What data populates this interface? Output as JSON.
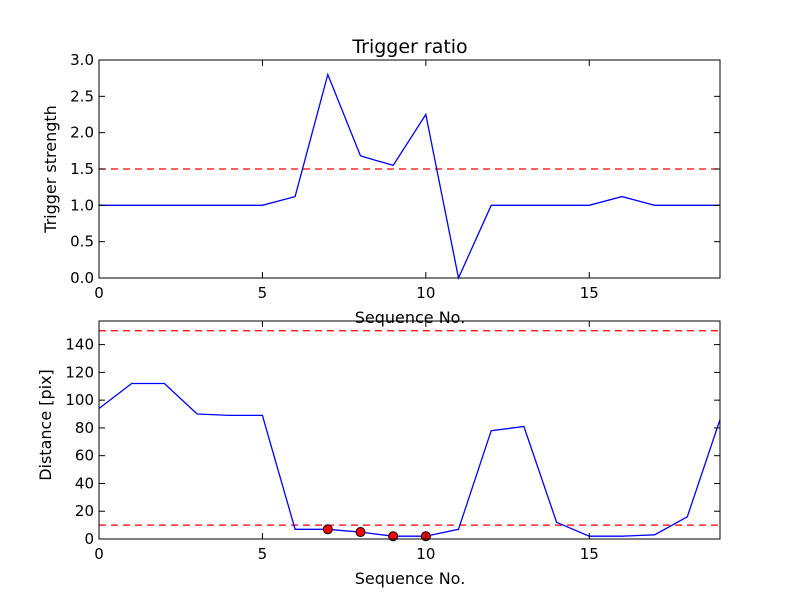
{
  "chart_data": [
    {
      "type": "line",
      "title": "Trigger ratio",
      "xlabel": "Sequence No.",
      "ylabel": "Trigger strength",
      "xlim": [
        0,
        19
      ],
      "ylim": [
        0,
        3.0
      ],
      "xticks": [
        0,
        5,
        10,
        15
      ],
      "xtick_labels": [
        "0",
        "5",
        "10",
        "15"
      ],
      "yticks": [
        0,
        0.5,
        1.0,
        1.5,
        2.0,
        2.5,
        3.0
      ],
      "ytick_labels": [
        "0.0",
        "0.5",
        "1.0",
        "1.5",
        "2.0",
        "2.5",
        "3.0"
      ],
      "grid": false,
      "series": [
        {
          "x": [
            0,
            1,
            2,
            3,
            4,
            5,
            6,
            7,
            8,
            9,
            10,
            11,
            12,
            13,
            14,
            15,
            16,
            17,
            18,
            19
          ],
          "values": [
            1.0,
            1.0,
            1.0,
            1.0,
            1.0,
            1.0,
            1.12,
            2.8,
            1.68,
            1.55,
            2.25,
            0.0,
            1.0,
            1.0,
            1.0,
            1.0,
            1.12,
            1.0,
            1.0,
            1.0
          ],
          "color": "#0000ff"
        }
      ],
      "hlines": [
        {
          "y": 1.5,
          "color": "#ff0000",
          "style": "dashed"
        }
      ]
    },
    {
      "type": "line",
      "title": "",
      "xlabel": "Sequence No.",
      "ylabel": "Distance [pix]",
      "xlim": [
        0,
        19
      ],
      "ylim": [
        0,
        157
      ],
      "xticks": [
        0,
        5,
        10,
        15
      ],
      "xtick_labels": [
        "0",
        "5",
        "10",
        "15"
      ],
      "yticks": [
        0,
        20,
        40,
        60,
        80,
        100,
        120,
        140
      ],
      "ytick_labels": [
        "0",
        "20",
        "40",
        "60",
        "80",
        "100",
        "120",
        "140"
      ],
      "grid": false,
      "series": [
        {
          "x": [
            0,
            1,
            2,
            3,
            4,
            5,
            6,
            7,
            8,
            9,
            10,
            11,
            12,
            13,
            14,
            15,
            16,
            17,
            18,
            19
          ],
          "values": [
            94,
            112,
            112,
            90,
            89,
            89,
            7,
            7,
            5,
            2,
            2,
            7,
            78,
            81,
            12,
            2,
            2,
            3,
            16,
            86
          ],
          "color": "#0000ff"
        }
      ],
      "markers": {
        "x": [
          7,
          8,
          9,
          10
        ],
        "values": [
          7,
          5,
          2,
          2
        ],
        "color": "#ff0000"
      },
      "hlines": [
        {
          "y": 150,
          "color": "#ff0000",
          "style": "dashed"
        },
        {
          "y": 10,
          "color": "#ff0000",
          "style": "dashed"
        }
      ]
    }
  ]
}
